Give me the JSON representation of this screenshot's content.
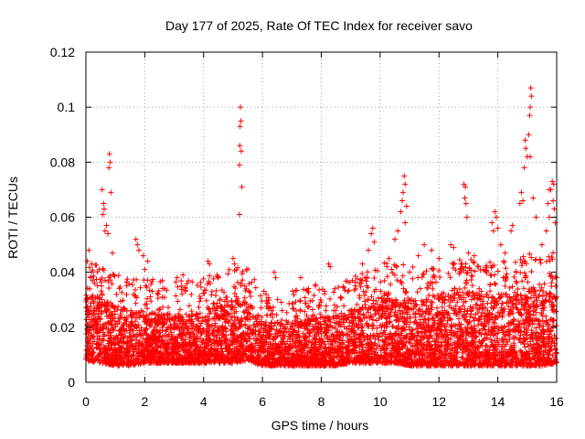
{
  "chart_data": {
    "type": "scatter",
    "title": "Day 177 of 2025, Rate Of TEC Index for receiver savo",
    "xlabel": "GPS time / hours",
    "ylabel": "ROTI / TECUs",
    "xlim": [
      0,
      16
    ],
    "ylim": [
      0,
      0.12
    ],
    "grid": true,
    "marker": "+",
    "marker_color": "#ff0000",
    "x_ticks": [
      0,
      2,
      4,
      6,
      8,
      10,
      12,
      14,
      16
    ],
    "x_tick_labels": [
      "0",
      "2",
      "4",
      "6",
      "8",
      "10",
      "12",
      "14",
      "16"
    ],
    "y_ticks": [
      0,
      0.02,
      0.04,
      0.06,
      0.08,
      0.1,
      0.12
    ],
    "y_tick_labels": [
      "0",
      "0.02",
      "0.04",
      "0.06",
      "0.08",
      "0.1",
      "0.12"
    ],
    "series": [
      {
        "name": "ROTI",
        "points_note": "representative sample of dense scatter",
        "envelope": {
          "x": [
            0,
            0.5,
            1,
            1.5,
            2,
            2.5,
            3,
            3.5,
            4,
            4.5,
            5,
            5.5,
            6,
            6.5,
            7,
            7.5,
            8,
            8.5,
            9,
            9.5,
            10,
            10.5,
            11,
            11.5,
            12,
            12.5,
            13,
            13.5,
            14,
            14.5,
            15,
            15.5,
            16
          ],
          "base_min": [
            0.008,
            0.007,
            0.006,
            0.006,
            0.007,
            0.007,
            0.007,
            0.007,
            0.007,
            0.007,
            0.007,
            0.008,
            0.006,
            0.006,
            0.006,
            0.006,
            0.006,
            0.006,
            0.007,
            0.007,
            0.007,
            0.007,
            0.006,
            0.006,
            0.006,
            0.006,
            0.006,
            0.006,
            0.006,
            0.006,
            0.006,
            0.006,
            0.007
          ],
          "base_max": [
            0.032,
            0.03,
            0.028,
            0.026,
            0.026,
            0.025,
            0.025,
            0.025,
            0.027,
            0.028,
            0.03,
            0.03,
            0.022,
            0.022,
            0.022,
            0.023,
            0.024,
            0.024,
            0.026,
            0.028,
            0.032,
            0.032,
            0.03,
            0.03,
            0.032,
            0.033,
            0.033,
            0.032,
            0.032,
            0.032,
            0.035,
            0.035,
            0.036
          ]
        },
        "outliers": [
          {
            "x": 0.05,
            "y": 0.044
          },
          {
            "x": 0.1,
            "y": 0.048
          },
          {
            "x": 0.2,
            "y": 0.043
          },
          {
            "x": 0.55,
            "y": 0.07
          },
          {
            "x": 0.6,
            "y": 0.065
          },
          {
            "x": 0.62,
            "y": 0.063
          },
          {
            "x": 0.58,
            "y": 0.061
          },
          {
            "x": 0.65,
            "y": 0.055
          },
          {
            "x": 0.7,
            "y": 0.057
          },
          {
            "x": 0.8,
            "y": 0.083
          },
          {
            "x": 0.82,
            "y": 0.08
          },
          {
            "x": 0.78,
            "y": 0.078
          },
          {
            "x": 0.85,
            "y": 0.069
          },
          {
            "x": 0.75,
            "y": 0.054
          },
          {
            "x": 0.9,
            "y": 0.047
          },
          {
            "x": 1.7,
            "y": 0.052
          },
          {
            "x": 1.75,
            "y": 0.05
          },
          {
            "x": 1.8,
            "y": 0.048
          },
          {
            "x": 2.1,
            "y": 0.044
          },
          {
            "x": 2.0,
            "y": 0.041
          },
          {
            "x": 1.95,
            "y": 0.046
          },
          {
            "x": 2.6,
            "y": 0.037
          },
          {
            "x": 3.1,
            "y": 0.038
          },
          {
            "x": 3.3,
            "y": 0.039
          },
          {
            "x": 4.15,
            "y": 0.044
          },
          {
            "x": 4.2,
            "y": 0.043
          },
          {
            "x": 4.5,
            "y": 0.038
          },
          {
            "x": 5.0,
            "y": 0.045
          },
          {
            "x": 5.05,
            "y": 0.043
          },
          {
            "x": 5.25,
            "y": 0.1
          },
          {
            "x": 5.27,
            "y": 0.095
          },
          {
            "x": 5.24,
            "y": 0.093
          },
          {
            "x": 5.23,
            "y": 0.086
          },
          {
            "x": 5.28,
            "y": 0.084
          },
          {
            "x": 5.22,
            "y": 0.079
          },
          {
            "x": 5.3,
            "y": 0.071
          },
          {
            "x": 5.22,
            "y": 0.061
          },
          {
            "x": 5.4,
            "y": 0.035
          },
          {
            "x": 6.4,
            "y": 0.04
          },
          {
            "x": 6.45,
            "y": 0.038
          },
          {
            "x": 7.3,
            "y": 0.038
          },
          {
            "x": 7.8,
            "y": 0.035
          },
          {
            "x": 8.25,
            "y": 0.043
          },
          {
            "x": 8.3,
            "y": 0.042
          },
          {
            "x": 8.9,
            "y": 0.033
          },
          {
            "x": 9.4,
            "y": 0.043
          },
          {
            "x": 9.6,
            "y": 0.048
          },
          {
            "x": 9.7,
            "y": 0.054
          },
          {
            "x": 9.75,
            "y": 0.056
          },
          {
            "x": 9.8,
            "y": 0.051
          },
          {
            "x": 10.3,
            "y": 0.045
          },
          {
            "x": 10.5,
            "y": 0.052
          },
          {
            "x": 10.6,
            "y": 0.055
          },
          {
            "x": 10.7,
            "y": 0.062
          },
          {
            "x": 10.75,
            "y": 0.066
          },
          {
            "x": 10.78,
            "y": 0.069
          },
          {
            "x": 10.82,
            "y": 0.075
          },
          {
            "x": 10.85,
            "y": 0.072
          },
          {
            "x": 10.9,
            "y": 0.064
          },
          {
            "x": 10.85,
            "y": 0.058
          },
          {
            "x": 11.3,
            "y": 0.046
          },
          {
            "x": 11.5,
            "y": 0.05
          },
          {
            "x": 11.75,
            "y": 0.048
          },
          {
            "x": 12.0,
            "y": 0.045
          },
          {
            "x": 12.4,
            "y": 0.05
          },
          {
            "x": 12.5,
            "y": 0.049
          },
          {
            "x": 12.85,
            "y": 0.072
          },
          {
            "x": 12.9,
            "y": 0.071
          },
          {
            "x": 12.88,
            "y": 0.067
          },
          {
            "x": 12.92,
            "y": 0.065
          },
          {
            "x": 12.95,
            "y": 0.06
          },
          {
            "x": 13.0,
            "y": 0.047
          },
          {
            "x": 13.2,
            "y": 0.046
          },
          {
            "x": 13.35,
            "y": 0.042
          },
          {
            "x": 13.8,
            "y": 0.058
          },
          {
            "x": 13.85,
            "y": 0.055
          },
          {
            "x": 13.9,
            "y": 0.062
          },
          {
            "x": 13.95,
            "y": 0.06
          },
          {
            "x": 14.0,
            "y": 0.056
          },
          {
            "x": 14.1,
            "y": 0.05
          },
          {
            "x": 14.2,
            "y": 0.044
          },
          {
            "x": 14.25,
            "y": 0.047
          },
          {
            "x": 14.45,
            "y": 0.055
          },
          {
            "x": 14.5,
            "y": 0.057
          },
          {
            "x": 14.75,
            "y": 0.065
          },
          {
            "x": 14.8,
            "y": 0.069
          },
          {
            "x": 14.85,
            "y": 0.066
          },
          {
            "x": 14.9,
            "y": 0.078
          },
          {
            "x": 14.95,
            "y": 0.085
          },
          {
            "x": 14.93,
            "y": 0.088
          },
          {
            "x": 15.0,
            "y": 0.082
          },
          {
            "x": 15.05,
            "y": 0.09
          },
          {
            "x": 15.08,
            "y": 0.097
          },
          {
            "x": 15.1,
            "y": 0.1
          },
          {
            "x": 15.12,
            "y": 0.107
          },
          {
            "x": 15.14,
            "y": 0.104
          },
          {
            "x": 15.1,
            "y": 0.082
          },
          {
            "x": 15.2,
            "y": 0.067
          },
          {
            "x": 15.3,
            "y": 0.06
          },
          {
            "x": 15.5,
            "y": 0.05
          },
          {
            "x": 15.7,
            "y": 0.065
          },
          {
            "x": 15.75,
            "y": 0.07
          },
          {
            "x": 15.8,
            "y": 0.07
          },
          {
            "x": 15.85,
            "y": 0.073
          },
          {
            "x": 15.9,
            "y": 0.072
          },
          {
            "x": 15.88,
            "y": 0.066
          },
          {
            "x": 15.92,
            "y": 0.063
          },
          {
            "x": 15.95,
            "y": 0.058
          },
          {
            "x": 15.75,
            "y": 0.06
          },
          {
            "x": 15.65,
            "y": 0.055
          }
        ]
      }
    ]
  }
}
